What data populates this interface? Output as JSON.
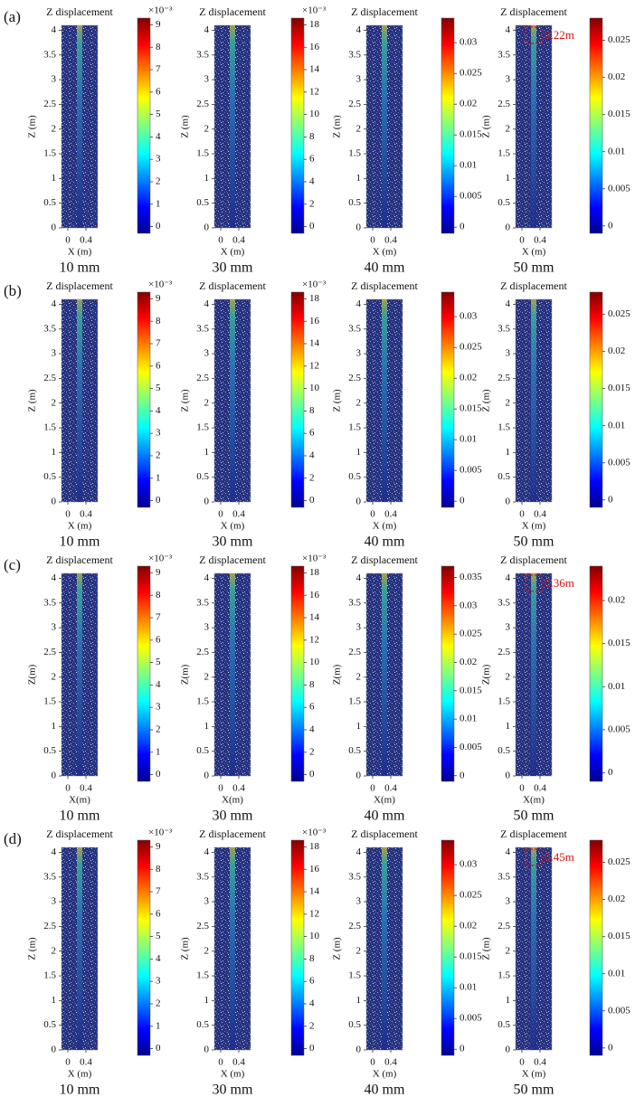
{
  "rows": [
    {
      "label": "(a)",
      "panels": [
        {
          "title": "Z displacement",
          "ylabel": "Z (m)",
          "xlabel": "X (m)",
          "ylim": [
            0,
            4.1
          ],
          "yticks": [
            0,
            0.5,
            1,
            1.5,
            2,
            2.5,
            3,
            3.5,
            4
          ],
          "xlim": [
            -0.14,
            0.66
          ],
          "xticks": [
            0,
            0.4
          ],
          "colorbar_lim": [
            -0.3,
            9.3
          ],
          "colorbar_ticks": [
            0,
            1,
            2,
            3,
            4,
            5,
            6,
            7,
            8,
            9
          ],
          "colorbar_exponent": "×10⁻³",
          "caption": "10 mm"
        },
        {
          "title": "Z displacement",
          "ylabel": "Z (m)",
          "xlabel": "X (m)",
          "ylim": [
            0,
            4.1
          ],
          "yticks": [
            0,
            0.5,
            1,
            1.5,
            2,
            2.5,
            3,
            3.5,
            4
          ],
          "xlim": [
            -0.14,
            0.66
          ],
          "xticks": [
            0,
            0.4
          ],
          "colorbar_lim": [
            -0.6,
            18.6
          ],
          "colorbar_ticks": [
            0,
            2,
            4,
            6,
            8,
            10,
            12,
            14,
            16,
            18
          ],
          "colorbar_exponent": "×10⁻³",
          "caption": "30 mm"
        },
        {
          "title": "Z displacement",
          "ylabel": "Z (m)",
          "xlabel": "X (m)",
          "ylim": [
            0,
            4.1
          ],
          "yticks": [
            0,
            0.5,
            1,
            1.5,
            2,
            2.5,
            3,
            3.5,
            4
          ],
          "xlim": [
            -0.14,
            0.66
          ],
          "xticks": [
            0,
            0.4
          ],
          "colorbar_lim": [
            -0.001,
            0.034
          ],
          "colorbar_ticks": [
            0,
            0.005,
            0.01,
            0.015,
            0.02,
            0.025,
            0.03
          ],
          "caption": "40 mm"
        },
        {
          "title": "Z displacement",
          "ylabel": "Z (m)",
          "xlabel": "X (m)",
          "ylim": [
            0,
            4.1
          ],
          "yticks": [
            0,
            0.5,
            1,
            1.5,
            2,
            2.5,
            3,
            3.5,
            4
          ],
          "xlim": [
            -0.14,
            0.66
          ],
          "xticks": [
            0,
            0.4
          ],
          "colorbar_lim": [
            -0.001,
            0.028
          ],
          "colorbar_ticks": [
            0,
            0.005,
            0.01,
            0.015,
            0.02,
            0.025
          ],
          "caption": "50 mm",
          "annotation": "0.22m"
        }
      ]
    },
    {
      "label": "(b)",
      "panels": [
        {
          "title": "Z displacement",
          "ylabel": "Z (m)",
          "xlabel": "X (m)",
          "ylim": [
            0,
            4.1
          ],
          "yticks": [
            0,
            0.5,
            1,
            1.5,
            2,
            2.5,
            3,
            3.5,
            4
          ],
          "xlim": [
            -0.14,
            0.66
          ],
          "xticks": [
            0,
            0.4
          ],
          "colorbar_lim": [
            -0.3,
            9.3
          ],
          "colorbar_ticks": [
            0,
            1,
            2,
            3,
            4,
            5,
            6,
            7,
            8,
            9
          ],
          "colorbar_exponent": "×10⁻³",
          "caption": "10 mm"
        },
        {
          "title": "Z displacement",
          "ylabel": "Z (m)",
          "xlabel": "X (m)",
          "ylim": [
            0,
            4.1
          ],
          "yticks": [
            0,
            0.5,
            1,
            1.5,
            2,
            2.5,
            3,
            3.5,
            4
          ],
          "xlim": [
            -0.14,
            0.66
          ],
          "xticks": [
            0,
            0.4
          ],
          "colorbar_lim": [
            -0.6,
            18.6
          ],
          "colorbar_ticks": [
            0,
            2,
            4,
            6,
            8,
            10,
            12,
            14,
            16,
            18
          ],
          "colorbar_exponent": "×10⁻³",
          "caption": "30 mm"
        },
        {
          "title": "Z displacement",
          "ylabel": "Z (m)",
          "xlabel": "X (m)",
          "ylim": [
            0,
            4.1
          ],
          "yticks": [
            0,
            0.5,
            1,
            1.5,
            2,
            2.5,
            3,
            3.5,
            4
          ],
          "xlim": [
            -0.14,
            0.66
          ],
          "xticks": [
            0,
            0.4
          ],
          "colorbar_lim": [
            -0.001,
            0.034
          ],
          "colorbar_ticks": [
            0,
            0.005,
            0.01,
            0.015,
            0.02,
            0.025,
            0.03
          ],
          "caption": "40 mm"
        },
        {
          "title": "Z displacement",
          "ylabel": "Z (m)",
          "xlabel": "X (m)",
          "ylim": [
            0,
            4.1
          ],
          "yticks": [
            0,
            0.5,
            1,
            1.5,
            2,
            2.5,
            3,
            3.5,
            4
          ],
          "xlim": [
            -0.14,
            0.66
          ],
          "xticks": [
            0,
            0.4
          ],
          "colorbar_lim": [
            -0.001,
            0.028
          ],
          "colorbar_ticks": [
            0,
            0.005,
            0.01,
            0.015,
            0.02,
            0.025
          ],
          "caption": "50 mm"
        }
      ]
    },
    {
      "label": "(c)",
      "panels": [
        {
          "title": "Z displacement",
          "ylabel": "Z(m)",
          "xlabel": "X(m)",
          "ylim": [
            0,
            4.1
          ],
          "yticks": [
            0,
            0.5,
            1,
            1.5,
            2,
            2.5,
            3,
            3.5,
            4
          ],
          "xlim": [
            -0.14,
            0.66
          ],
          "xticks": [
            0,
            0.4
          ],
          "colorbar_lim": [
            -0.3,
            9.3
          ],
          "colorbar_ticks": [
            0,
            1,
            2,
            3,
            4,
            5,
            6,
            7,
            8,
            9
          ],
          "colorbar_exponent": "×10⁻³",
          "caption": "10 mm"
        },
        {
          "title": "Z displacement",
          "ylabel": "Z(m)",
          "xlabel": "X(m)",
          "ylim": [
            0,
            4.1
          ],
          "yticks": [
            0,
            0.5,
            1,
            1.5,
            2,
            2.5,
            3,
            3.5,
            4
          ],
          "xlim": [
            -0.14,
            0.66
          ],
          "xticks": [
            0,
            0.4
          ],
          "colorbar_lim": [
            -0.6,
            18.6
          ],
          "colorbar_ticks": [
            0,
            2,
            4,
            6,
            8,
            10,
            12,
            14,
            16,
            18
          ],
          "colorbar_exponent": "×10⁻³",
          "caption": "30 mm"
        },
        {
          "title": "Z displacement",
          "ylabel": "Z(m)",
          "xlabel": "X(m)",
          "ylim": [
            0,
            4.1
          ],
          "yticks": [
            0,
            0.5,
            1,
            1.5,
            2,
            2.5,
            3,
            3.5,
            4
          ],
          "xlim": [
            -0.14,
            0.66
          ],
          "xticks": [
            0,
            0.4
          ],
          "colorbar_lim": [
            -0.001,
            0.037
          ],
          "colorbar_ticks": [
            0,
            0.005,
            0.01,
            0.015,
            0.02,
            0.025,
            0.03,
            0.035
          ],
          "caption": "40 mm"
        },
        {
          "title": "Z displacement",
          "ylabel": "Z(m)",
          "xlabel": "X(m)",
          "ylim": [
            0,
            4.1
          ],
          "yticks": [
            0,
            0.5,
            1,
            1.5,
            2,
            2.5,
            3,
            3.5,
            4
          ],
          "xlim": [
            -0.14,
            0.66
          ],
          "xticks": [
            0,
            0.4
          ],
          "colorbar_lim": [
            -0.001,
            0.024
          ],
          "colorbar_ticks": [
            0,
            0.005,
            0.01,
            0.015,
            0.02
          ],
          "caption": "50 mm",
          "annotation": "0.36m"
        }
      ]
    },
    {
      "label": "(d)",
      "panels": [
        {
          "title": "Z displacement",
          "ylabel": "Z (m)",
          "xlabel": "X (m)",
          "ylim": [
            0,
            4.1
          ],
          "yticks": [
            0,
            0.5,
            1,
            1.5,
            2,
            2.5,
            3,
            3.5,
            4
          ],
          "xlim": [
            -0.14,
            0.66
          ],
          "xticks": [
            0,
            0.4
          ],
          "colorbar_lim": [
            -0.3,
            9.3
          ],
          "colorbar_ticks": [
            0,
            1,
            2,
            3,
            4,
            5,
            6,
            7,
            8,
            9
          ],
          "colorbar_exponent": "×10⁻³",
          "caption": "10 mm"
        },
        {
          "title": "Z displacement",
          "ylabel": "Z (m)",
          "xlabel": "X (m)",
          "ylim": [
            0,
            4.1
          ],
          "yticks": [
            0,
            0.5,
            1,
            1.5,
            2,
            2.5,
            3,
            3.5,
            4
          ],
          "xlim": [
            -0.14,
            0.66
          ],
          "xticks": [
            0,
            0.4
          ],
          "colorbar_lim": [
            -0.6,
            18.6
          ],
          "colorbar_ticks": [
            0,
            2,
            4,
            6,
            8,
            10,
            12,
            14,
            16,
            18
          ],
          "colorbar_exponent": "×10⁻³",
          "caption": "30 mm"
        },
        {
          "title": "Z displacement",
          "ylabel": "Z (m)",
          "xlabel": "X (m)",
          "ylim": [
            0,
            4.1
          ],
          "yticks": [
            0,
            0.5,
            1,
            1.5,
            2,
            2.5,
            3,
            3.5,
            4
          ],
          "xlim": [
            -0.14,
            0.66
          ],
          "xticks": [
            0,
            0.4
          ],
          "colorbar_lim": [
            -0.001,
            0.034
          ],
          "colorbar_ticks": [
            0,
            0.005,
            0.01,
            0.015,
            0.02,
            0.025,
            0.03
          ],
          "caption": "40 mm"
        },
        {
          "title": "Z displacement",
          "ylabel": "Z (m)",
          "xlabel": "X (m)",
          "ylim": [
            0,
            4.1
          ],
          "yticks": [
            0,
            0.5,
            1,
            1.5,
            2,
            2.5,
            3,
            3.5,
            4
          ],
          "xlim": [
            -0.14,
            0.66
          ],
          "xticks": [
            0,
            0.4
          ],
          "colorbar_lim": [
            -0.001,
            0.028
          ],
          "colorbar_ticks": [
            0,
            0.005,
            0.01,
            0.015,
            0.02,
            0.025
          ],
          "caption": "50 mm",
          "annotation": "0.45m"
        }
      ]
    }
  ]
}
